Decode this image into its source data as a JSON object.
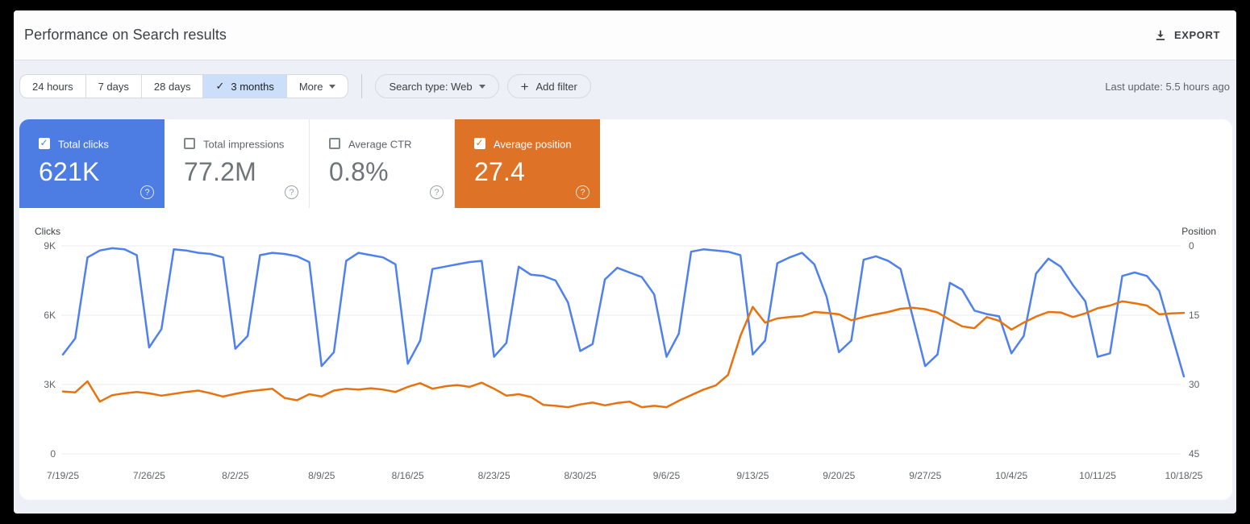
{
  "header": {
    "title": "Performance on Search results",
    "export_label": "EXPORT"
  },
  "filters": {
    "date_ranges": [
      "24 hours",
      "7 days",
      "28 days",
      "3 months",
      "More"
    ],
    "selected_range": "3 months",
    "search_type_label": "Search type: Web",
    "add_filter_label": "Add filter",
    "last_update": "Last update: 5.5 hours ago"
  },
  "metric_cards": [
    {
      "label": "Total clicks",
      "value": "621K",
      "checked": true,
      "color": "#4d7de2",
      "text_color": "#ffffff"
    },
    {
      "label": "Total impressions",
      "value": "77.2M",
      "checked": false,
      "color": "#ffffff"
    },
    {
      "label": "Average CTR",
      "value": "0.8%",
      "checked": false,
      "color": "#ffffff"
    },
    {
      "label": "Average position",
      "value": "27.4",
      "checked": true,
      "color": "#de7226",
      "text_color": "#ffffff"
    }
  ],
  "chart_data": {
    "type": "line",
    "x_labels": [
      "7/19/25",
      "7/26/25",
      "8/2/25",
      "8/9/25",
      "8/16/25",
      "8/23/25",
      "8/30/25",
      "9/6/25",
      "9/13/25",
      "9/20/25",
      "9/27/25",
      "10/4/25",
      "10/11/25",
      "10/18/25"
    ],
    "x_label_every": 7,
    "grid": true,
    "left_axis": {
      "title": "Clicks",
      "tick_labels": [
        "9K",
        "6K",
        "3K",
        "0"
      ],
      "tick_values": [
        9000,
        6000,
        3000,
        0
      ],
      "range": [
        0,
        9000
      ]
    },
    "right_axis": {
      "title": "Position",
      "tick_labels": [
        "0",
        "15",
        "30",
        "45"
      ],
      "tick_values": [
        0,
        15,
        30,
        45
      ],
      "range": [
        0,
        45
      ],
      "inverted": true
    },
    "series": [
      {
        "name": "Total clicks",
        "axis": "left",
        "color": "#4e80ee",
        "values": [
          4300,
          5000,
          8500,
          8800,
          8900,
          8850,
          8600,
          4600,
          5400,
          8850,
          8800,
          8700,
          8650,
          8500,
          4550,
          5100,
          8600,
          8700,
          8650,
          8550,
          8300,
          3800,
          4400,
          8350,
          8700,
          8600,
          8500,
          8200,
          3900,
          4900,
          8000,
          8100,
          8200,
          8300,
          8350,
          4200,
          4800,
          8100,
          7750,
          7700,
          7500,
          6550,
          4450,
          4750,
          7550,
          8050,
          7850,
          7650,
          6900,
          4200,
          5200,
          8750,
          8850,
          8800,
          8750,
          8600,
          4300,
          4900,
          8250,
          8500,
          8700,
          8200,
          6800,
          4400,
          4900,
          8400,
          8550,
          8350,
          8000,
          5900,
          3800,
          4300,
          7400,
          7100,
          6200,
          6050,
          5950,
          4350,
          5100,
          7800,
          8450,
          8100,
          7300,
          6600,
          4200,
          4350,
          7700,
          7850,
          7700,
          7050,
          5200,
          3350
        ]
      },
      {
        "name": "Average position",
        "axis": "right",
        "color": "#e8730e",
        "values": [
          31.5,
          31.7,
          29.3,
          33.7,
          32.3,
          31.9,
          31.6,
          31.9,
          32.4,
          32.0,
          31.6,
          31.3,
          31.9,
          32.6,
          32.0,
          31.5,
          31.2,
          30.9,
          32.9,
          33.4,
          32.1,
          32.6,
          31.3,
          30.9,
          31.1,
          30.8,
          31.1,
          31.6,
          30.5,
          29.7,
          30.9,
          30.4,
          30.1,
          30.5,
          29.6,
          30.9,
          32.4,
          32.1,
          32.7,
          34.4,
          34.6,
          34.9,
          34.3,
          33.9,
          34.5,
          34.0,
          33.7,
          34.9,
          34.6,
          34.9,
          33.5,
          32.3,
          31.1,
          30.2,
          27.9,
          19.5,
          13.2,
          16.6,
          15.7,
          15.4,
          15.2,
          14.3,
          14.5,
          14.8,
          16.1,
          15.4,
          14.8,
          14.3,
          13.6,
          13.4,
          13.7,
          14.4,
          16.0,
          17.4,
          17.8,
          15.4,
          16.2,
          18.1,
          16.6,
          15.3,
          14.3,
          14.4,
          15.4,
          14.6,
          13.5,
          12.9,
          12.0,
          12.4,
          12.9,
          14.8,
          14.6,
          14.5
        ]
      }
    ]
  }
}
